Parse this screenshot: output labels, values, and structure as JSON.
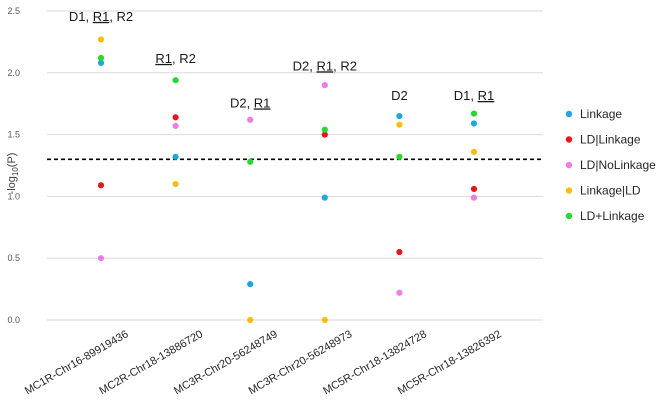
{
  "chart_data": {
    "type": "scatter",
    "ylabel": "-log10(P)",
    "ylabel_main": "-log",
    "ylabel_sub": "10",
    "ylabel_tail": "(P)",
    "ylim": [
      0,
      2.5
    ],
    "yticks": [
      "0.0",
      "0.5",
      "1.0",
      "1.5",
      "2.0",
      "2.5"
    ],
    "threshold": 1.3,
    "categories": [
      "MC1R-Chr16-89919436",
      "MC2R-Chr18-13886720",
      "MC3R-Chr20-56248749",
      "MC3R-Chr20-56248973",
      "MC5R-Chr18-13824728",
      "MC5R-Chr18-13826392"
    ],
    "series": [
      {
        "name": "Linkage",
        "color": "#1fa7dd",
        "values": [
          2.08,
          1.32,
          0.29,
          0.99,
          1.65,
          1.59
        ]
      },
      {
        "name": "LD|Linkage",
        "color": "#e8161c",
        "values": [
          1.09,
          1.64,
          null,
          1.5,
          0.55,
          1.06
        ]
      },
      {
        "name": "LD|NoLinkage",
        "color": "#ee7ce6",
        "values": [
          0.5,
          1.57,
          1.62,
          1.9,
          0.22,
          0.99
        ]
      },
      {
        "name": "Linkage|LD",
        "color": "#fbbc12",
        "values": [
          2.27,
          1.1,
          0.0,
          0.0,
          1.58,
          1.36
        ]
      },
      {
        "name": "LD+Linkage",
        "color": "#27d92e",
        "values": [
          2.12,
          1.94,
          1.28,
          1.54,
          1.32,
          1.67
        ]
      }
    ],
    "annotations": [
      {
        "category": 0,
        "y": 2.42,
        "parts": [
          {
            "text": "D1, ",
            "u": false
          },
          {
            "text": "R1",
            "u": true
          },
          {
            "text": ", R2",
            "u": false
          }
        ]
      },
      {
        "category": 1,
        "y": 2.08,
        "parts": [
          {
            "text": "R1",
            "u": true
          },
          {
            "text": ", R2",
            "u": false
          }
        ]
      },
      {
        "category": 2,
        "y": 1.72,
        "parts": [
          {
            "text": "D2, ",
            "u": false
          },
          {
            "text": "R1",
            "u": true
          }
        ]
      },
      {
        "category": 3,
        "y": 2.02,
        "parts": [
          {
            "text": "D2, ",
            "u": false
          },
          {
            "text": "R1",
            "u": true
          },
          {
            "text": ", R2",
            "u": false
          }
        ]
      },
      {
        "category": 4,
        "y": 1.78,
        "parts": [
          {
            "text": "D2",
            "u": false
          }
        ]
      },
      {
        "category": 5,
        "y": 1.78,
        "parts": [
          {
            "text": "D1, ",
            "u": false
          },
          {
            "text": "R1",
            "u": true
          }
        ]
      }
    ]
  }
}
